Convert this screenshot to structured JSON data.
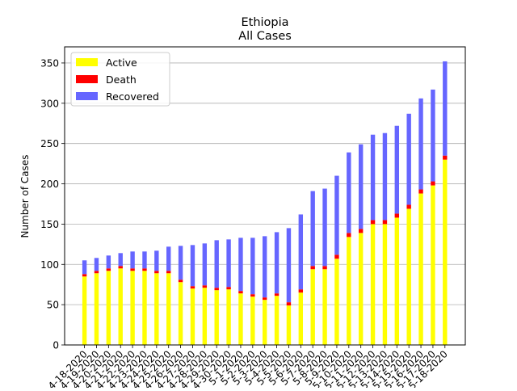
{
  "chart_data": {
    "type": "bar",
    "stacked": true,
    "title": "Ethiopia",
    "subtitle": "All Cases",
    "xlabel": "",
    "ylabel": "Number of Cases",
    "ylim": [
      0,
      370
    ],
    "yticks": [
      0,
      50,
      100,
      150,
      200,
      250,
      300,
      350
    ],
    "grid": "horizontal",
    "legend_position": "top-left",
    "categories": [
      "4-18-2020",
      "4-19-2020",
      "4-20-2020",
      "4-21-2020",
      "4-22-2020",
      "4-23-2020",
      "4-24-2020",
      "4-25-2020",
      "4-26-2020",
      "4-27-2020",
      "4-28-2020",
      "4-29-2020",
      "4-30-2020",
      "5-1-2020",
      "5-2-2020",
      "5-3-2020",
      "5-4-2020",
      "5-5-2020",
      "5-6-2020",
      "5-7-2020",
      "5-8-2020",
      "5-9-2020",
      "5-10-2020",
      "5-11-2020",
      "5-12-2020",
      "5-13-2020",
      "5-14-2020",
      "5-15-2020",
      "5-16-2020",
      "5-17-2020",
      "5-18-2020"
    ],
    "series": [
      {
        "name": "Active",
        "color": "#ffff00",
        "values": [
          85,
          89,
          92,
          95,
          92,
          92,
          89,
          89,
          78,
          70,
          71,
          68,
          69,
          64,
          60,
          56,
          61,
          49,
          65,
          94,
          94,
          107,
          134,
          139,
          150,
          150,
          158,
          169,
          188,
          198,
          230
        ]
      },
      {
        "name": "Death",
        "color": "#ff0000",
        "values": [
          3,
          3,
          3,
          3,
          3,
          3,
          3,
          3,
          3,
          3,
          3,
          3,
          3,
          3,
          3,
          3,
          3,
          4,
          4,
          4,
          4,
          5,
          5,
          5,
          5,
          5,
          5,
          5,
          5,
          5,
          5
        ]
      },
      {
        "name": "Recovered",
        "color": "#6666ff",
        "values": [
          17,
          16,
          16,
          16,
          21,
          21,
          25,
          30,
          42,
          51,
          52,
          59,
          59,
          66,
          70,
          76,
          76,
          92,
          93,
          93,
          96,
          98,
          100,
          105,
          106,
          108,
          109,
          113,
          113,
          114,
          117
        ]
      }
    ]
  }
}
